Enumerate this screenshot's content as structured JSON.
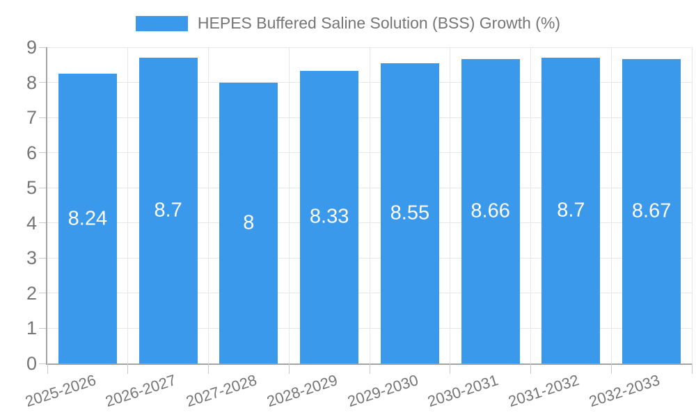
{
  "chart_data": {
    "type": "bar",
    "title": "HEPES Buffered Saline Solution (BSS) Growth (%)",
    "categories": [
      "2025-2026",
      "2026-2027",
      "2027-2028",
      "2028-2029",
      "2029-2030",
      "2030-2031",
      "2031-2032",
      "2032-2033"
    ],
    "values": [
      8.24,
      8.7,
      8,
      8.33,
      8.55,
      8.66,
      8.7,
      8.67
    ],
    "value_labels": [
      "8.24",
      "8.7",
      "8",
      "8.33",
      "8.55",
      "8.66",
      "8.7",
      "8.67"
    ],
    "xlabel": "",
    "ylabel": "",
    "ylim": [
      0,
      9
    ],
    "yticks": [
      0,
      1,
      2,
      3,
      4,
      5,
      6,
      7,
      8,
      9
    ],
    "grid": true,
    "legend_position": "top-center",
    "colors": {
      "bar": "#3B99EC",
      "value_label": "#FFFFFF",
      "axis_line": "#A3A3A3",
      "gridline": "#E6E6E6",
      "tick": "#C9C9C9",
      "text": "#757575",
      "background": "#FFFFFF"
    }
  }
}
